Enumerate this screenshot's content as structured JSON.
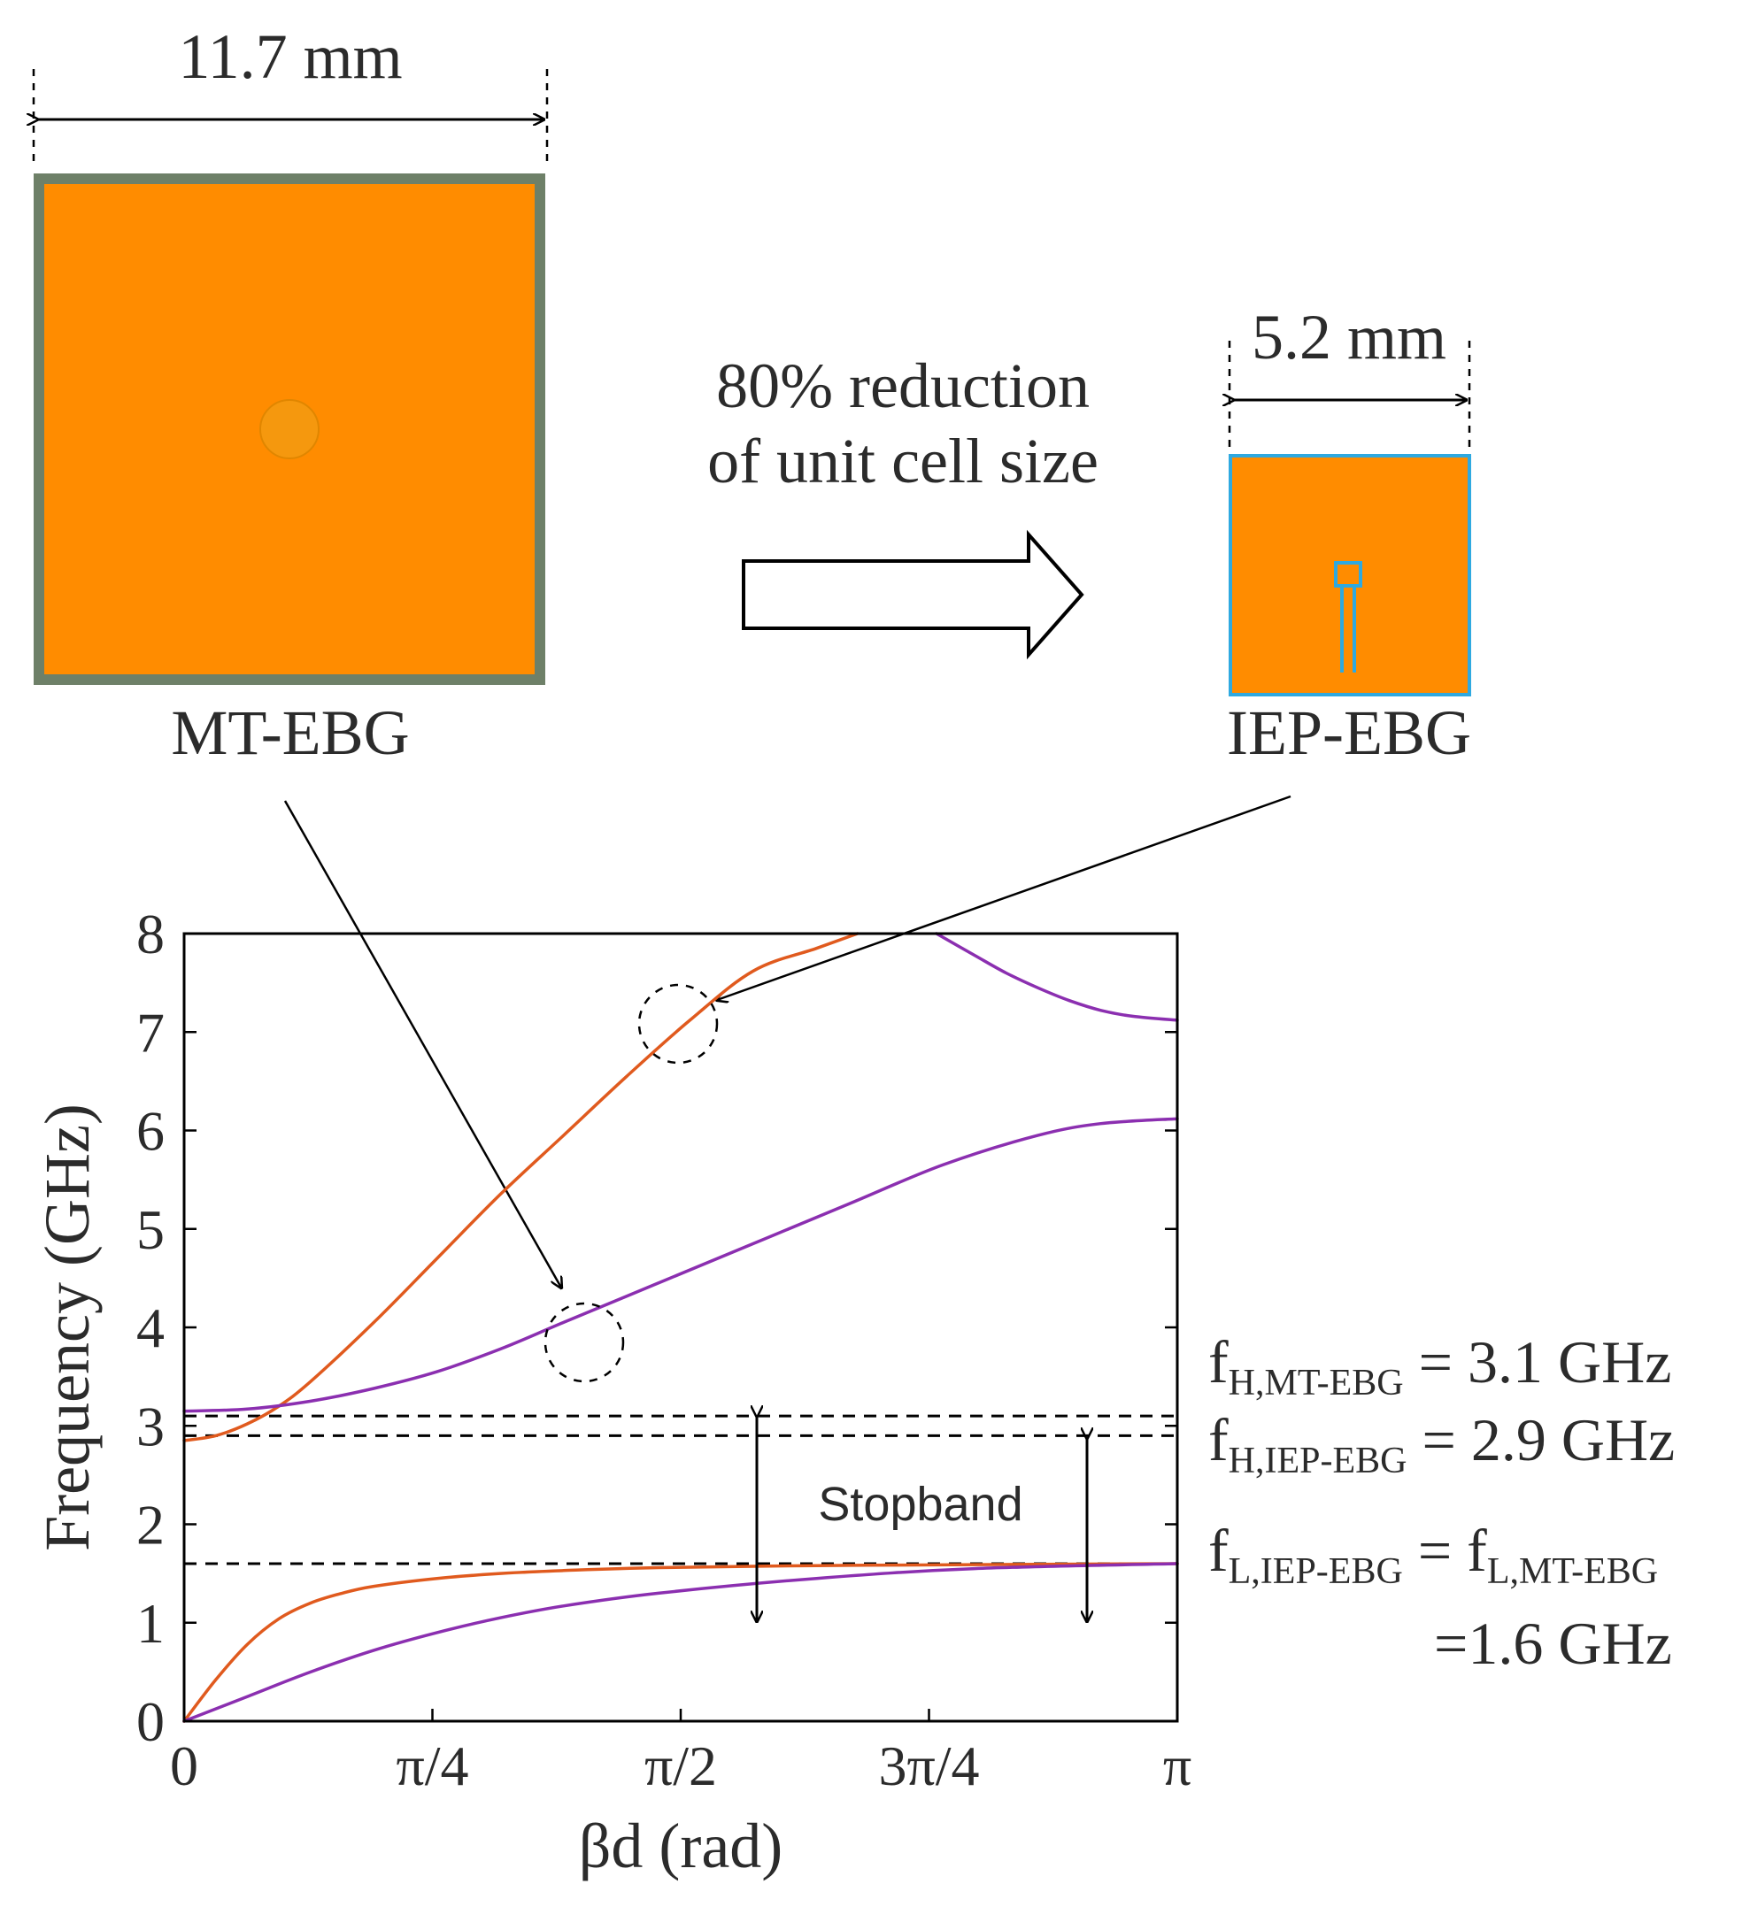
{
  "top": {
    "left_width_label": "11.7 mm",
    "left_name": "MT-EBG",
    "right_width_label": "5.2 mm",
    "right_name": "IEP-EBG",
    "reduction_line1": "80% reduction",
    "reduction_line2": "of unit cell size",
    "colors": {
      "patch": "#FF8C00",
      "mt_border": "#6E8068",
      "iep_border": "#2FA9E0",
      "via": "#F5980E"
    }
  },
  "chart_data": {
    "type": "line",
    "xlabel": "βd (rad)",
    "ylabel": "Frequency (GHz)",
    "xlim": [
      0,
      3.14159
    ],
    "ylim": [
      0,
      8
    ],
    "xticks": [
      {
        "value": 0,
        "label": "0"
      },
      {
        "value": 0.7854,
        "label": "π/4"
      },
      {
        "value": 1.5708,
        "label": "π/2"
      },
      {
        "value": 2.3562,
        "label": "3π/4"
      },
      {
        "value": 3.14159,
        "label": "π"
      }
    ],
    "yticks": [
      0,
      1,
      2,
      3,
      4,
      5,
      6,
      7,
      8
    ],
    "grid": false,
    "series": [
      {
        "color": "#E05A1E",
        "x": [
          0,
          0.1,
          0.2,
          0.3,
          0.4,
          0.5,
          0.6,
          0.8,
          1.0,
          1.2,
          1.5,
          2.0,
          2.5,
          3.14159
        ],
        "y": [
          0,
          0.42,
          0.78,
          1.04,
          1.2,
          1.3,
          1.37,
          1.45,
          1.5,
          1.53,
          1.56,
          1.58,
          1.59,
          1.6
        ]
      },
      {
        "color": "#E05A1E",
        "x": [
          0,
          0.1,
          0.2,
          0.3,
          0.4,
          0.6,
          0.8,
          1.0,
          1.2,
          1.4,
          1.6,
          1.8,
          2.0,
          2.13
        ],
        "y": [
          2.85,
          2.9,
          3.02,
          3.2,
          3.45,
          4.05,
          4.7,
          5.35,
          5.95,
          6.55,
          7.12,
          7.62,
          7.85,
          8.0
        ]
      },
      {
        "color": "#8B2FB0",
        "x": [
          0,
          0.2,
          0.4,
          0.6,
          0.8,
          1.0,
          1.2,
          1.5,
          2.0,
          2.5,
          3.14159
        ],
        "y": [
          0,
          0.25,
          0.5,
          0.72,
          0.9,
          1.05,
          1.17,
          1.3,
          1.45,
          1.55,
          1.6
        ]
      },
      {
        "color": "#8B2FB0",
        "x": [
          0,
          0.2,
          0.4,
          0.6,
          0.8,
          1.0,
          1.2,
          1.5,
          1.8,
          2.1,
          2.4,
          2.7,
          2.9,
          3.14159
        ],
        "y": [
          3.15,
          3.17,
          3.25,
          3.38,
          3.55,
          3.78,
          4.05,
          4.45,
          4.85,
          5.25,
          5.65,
          5.95,
          6.07,
          6.12
        ]
      },
      {
        "color": "#8B2FB0",
        "x": [
          2.38,
          2.5,
          2.6,
          2.7,
          2.8,
          2.9,
          3.0,
          3.14159
        ],
        "y": [
          8.0,
          7.78,
          7.6,
          7.45,
          7.32,
          7.22,
          7.16,
          7.12
        ]
      }
    ],
    "reference_lines": [
      {
        "y": 3.1,
        "style": "dashed"
      },
      {
        "y": 2.9,
        "style": "dashed"
      },
      {
        "y": 1.6,
        "style": "dashed"
      }
    ],
    "annotations": {
      "stopband": "Stopband",
      "fH_mt_main": "f",
      "fH_mt_sub": "H,MT-EBG",
      "fH_mt_value": " = 3.1 GHz",
      "fH_iep_main": "f",
      "fH_iep_sub": "H,IEP-EBG",
      "fH_iep_value": " = 2.9 GHz",
      "fL_left_main": "f",
      "fL_left_sub": "L,IEP-EBG",
      "fL_eq": " = ",
      "fL_right_main": "f",
      "fL_right_sub": "L,MT-EBG",
      "fL_value": "=1.6 GHz"
    }
  }
}
